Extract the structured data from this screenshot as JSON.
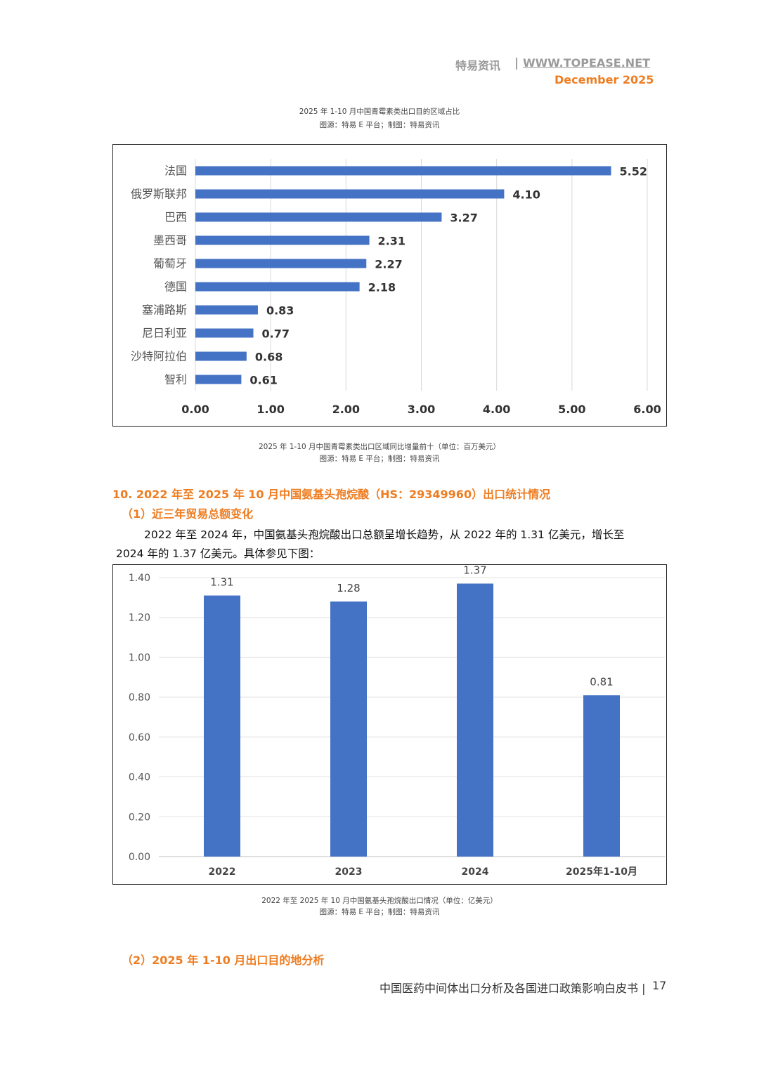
{
  "header": {
    "brand": "特易资讯",
    "separator": "|",
    "url": "WWW.TOPEASE.NET",
    "date": "December 2025"
  },
  "chart1": {
    "title": "2025 年 1-10 月中国青霉素类出口目的区域占比",
    "source": "图源：特易 E 平台；制图：特易资讯",
    "caption": "2025 年 1-10 月中国青霉素类出口区域同比增量前十（单位：百万美元）",
    "caption_source": "图源：特易 E 平台；制图：特易资讯"
  },
  "section10": {
    "heading": "10. 2022 年至 2025 年 10 月中国氨基头孢烷酸（HS：29349960）出口统计情况",
    "sub1": "（1）近三年贸易总额变化",
    "para_line1": "2022 年至 2024 年，中国氨基头孢烷酸出口总额呈增长趋势，从 2022 年的 1.31 亿美元，增长至",
    "para_line2": "2024 年的 1.37 亿美元。具体参见下图："
  },
  "chart2": {
    "caption": "2022 年至 2025 年 10 月中国氨基头孢烷酸出口情况（单位：亿美元）",
    "caption_source": "图源：特易 E 平台；制图：特易资讯"
  },
  "sub2": "（2）2025 年 1-10 月出口目的地分析",
  "footer": {
    "title": "中国医药中间体出口分析及各国进口政策影响白皮书",
    "separator": "|",
    "page": "17"
  },
  "colors": {
    "bar": "#4472c4",
    "accent": "#ee7d22"
  },
  "chart_data": [
    {
      "type": "bar",
      "orientation": "horizontal",
      "categories": [
        "法国",
        "俄罗斯联邦",
        "巴西",
        "墨西哥",
        "葡萄牙",
        "德国",
        "塞浦路斯",
        "尼日利亚",
        "沙特阿拉伯",
        "智利"
      ],
      "values": [
        5.52,
        4.1,
        3.27,
        2.31,
        2.27,
        2.18,
        0.83,
        0.77,
        0.68,
        0.61
      ],
      "value_labels": [
        "5.52",
        "4.10",
        "3.27",
        "2.31",
        "2.27",
        "2.18",
        "0.83",
        "0.77",
        "0.68",
        "0.61"
      ],
      "xlim": [
        0,
        6
      ],
      "x_ticks": [
        "0.00",
        "1.00",
        "2.00",
        "3.00",
        "4.00",
        "5.00",
        "6.00"
      ],
      "grid": true
    },
    {
      "type": "bar",
      "orientation": "vertical",
      "categories": [
        "2022",
        "2023",
        "2024",
        "2025年1-10月"
      ],
      "values": [
        1.31,
        1.28,
        1.37,
        0.81
      ],
      "value_labels": [
        "1.31",
        "1.28",
        "1.37",
        "0.81"
      ],
      "ylim": [
        0,
        1.4
      ],
      "y_ticks": [
        "0.00",
        "0.20",
        "0.40",
        "0.60",
        "0.80",
        "1.00",
        "1.20",
        "1.40"
      ],
      "grid": true
    }
  ]
}
